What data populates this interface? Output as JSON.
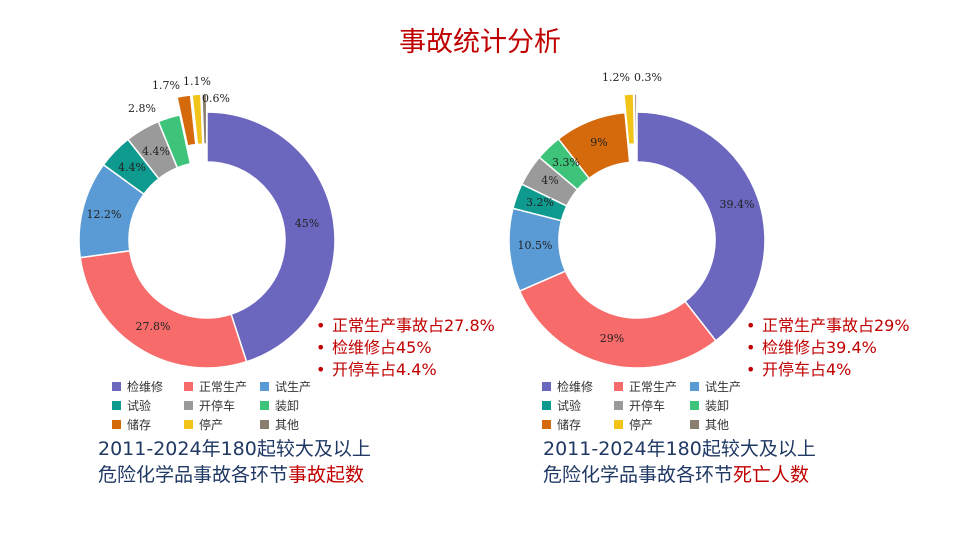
{
  "title": "事故统计分析",
  "colors": [
    "#6b67bf",
    "#f76b6b",
    "#5b9bd5",
    "#0e9a8f",
    "#9a9a9a",
    "#3ec47a",
    "#d46a0c",
    "#f2c318",
    "#8a7f6e"
  ],
  "chart_data": [
    {
      "type": "donut",
      "categories": [
        "检维修",
        "正常生产",
        "试生产",
        "试验",
        "开停车",
        "装卸",
        "储存",
        "停产",
        "其他"
      ],
      "values": [
        45,
        27.8,
        12.2,
        4.4,
        4.4,
        2.8,
        1.7,
        1.1,
        0.6
      ],
      "labels": [
        "45%",
        "27.8%",
        "12.2%",
        "4.4%",
        "4.4%",
        "2.8%",
        "1.7%",
        "1.1%",
        "0.6%"
      ],
      "exploded": [
        6,
        7,
        8
      ],
      "legend": [
        "检维修",
        "正常生产",
        "试生产",
        "试验",
        "开停车",
        "装卸",
        "储存",
        "停产",
        "其他"
      ],
      "bullets": [
        "正常生产事故占27.8%",
        "检维修占45%",
        "开停车占4.4%"
      ],
      "caption_line1": "2011-2024年180起较大及以上",
      "caption_line2a": "危险化学品事故各环节",
      "caption_line2b": "事故起数"
    },
    {
      "type": "donut",
      "categories": [
        "检维修",
        "正常生产",
        "试生产",
        "试验",
        "开停车",
        "装卸",
        "储存",
        "停产",
        "其他"
      ],
      "values": [
        39.4,
        29,
        10.5,
        3.2,
        4,
        3.3,
        9,
        1.2,
        0.3
      ],
      "labels": [
        "39.4%",
        "29%",
        "10.5%",
        "3.2%",
        "4%",
        "3.3%",
        "9%",
        "1.2%",
        "0.3%"
      ],
      "exploded": [
        7,
        8
      ],
      "legend": [
        "检维修",
        "正常生产",
        "试生产",
        "试验",
        "开停车",
        "装卸",
        "储存",
        "停产",
        "其他"
      ],
      "bullets": [
        "正常生产事故占29%",
        "检维修占39.4%",
        "开停车占4%"
      ],
      "caption_line1": "2011-2024年180起较大及以上",
      "caption_line2a": "危险化学品事故各环节",
      "caption_line2b": "死亡人数"
    }
  ]
}
